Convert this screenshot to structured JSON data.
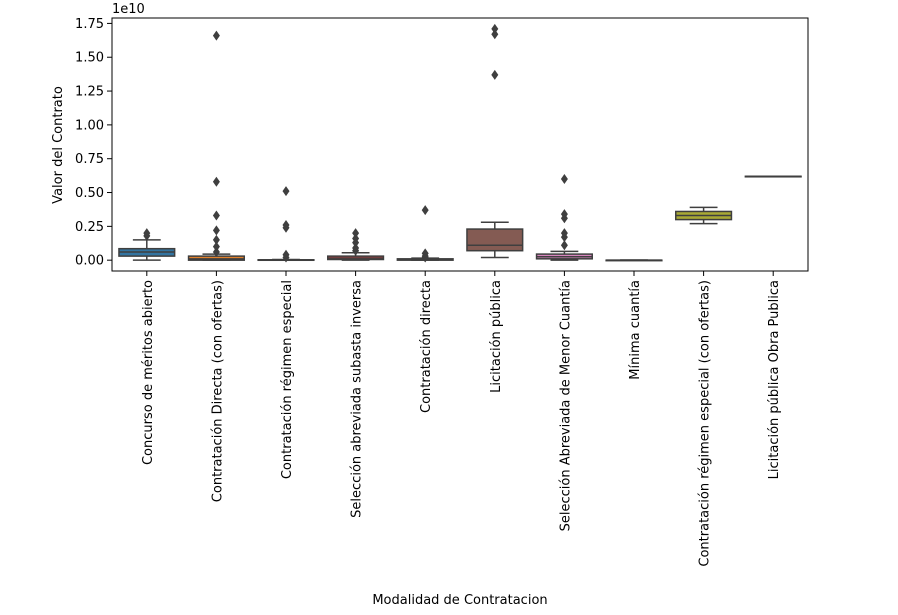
{
  "chart_data": {
    "type": "box",
    "title": "",
    "xlabel": "Modalidad de Contratacion",
    "ylabel": "Valor del Contrato",
    "y_multiplier_label": "1e10",
    "y_scale": 10000000000.0,
    "ylim": [
      -0.08,
      1.79
    ],
    "y_ticks": [
      0.0,
      0.25,
      0.5,
      0.75,
      1.0,
      1.25,
      1.5,
      1.75
    ],
    "y_tick_labels": [
      "0.00",
      "0.25",
      "0.50",
      "0.75",
      "1.00",
      "1.25",
      "1.50",
      "1.75"
    ],
    "grid": false,
    "categories": [
      "Concurso de méritos abierto",
      "Contratación Directa (con ofertas)",
      "Contratación régimen especial",
      "Selección abreviada subasta inversa",
      "Contratación directa",
      "Licitación pública",
      "Selección Abreviada de Menor Cuantía",
      "Mínima cuantía",
      "Contratación régimen especial (con ofertas)",
      "Licitación pública Obra Publica"
    ],
    "colors": [
      "#3274a1",
      "#e1812c",
      "#3a923a",
      "#c03d3e",
      "#9372b2",
      "#845b53",
      "#d684bd",
      "#7f7f7f",
      "#a9aa35",
      "#2eaab8"
    ],
    "boxes": [
      {
        "whislo": 0.0,
        "q1": 0.03,
        "med": 0.06,
        "q3": 0.085,
        "whishi": 0.15,
        "fliers": [
          0.18,
          0.2
        ]
      },
      {
        "whislo": 0.0,
        "q1": 0.0,
        "med": 0.01,
        "q3": 0.03,
        "whishi": 0.045,
        "fliers": [
          0.06,
          0.1,
          0.15,
          0.22,
          0.33,
          0.58,
          1.66
        ]
      },
      {
        "whislo": 0.0,
        "q1": 0.0,
        "med": 0.0,
        "q3": 0.003,
        "whishi": 0.005,
        "fliers": [
          0.02,
          0.04,
          0.24,
          0.26,
          0.51
        ]
      },
      {
        "whislo": 0.0,
        "q1": 0.005,
        "med": 0.015,
        "q3": 0.03,
        "whishi": 0.055,
        "fliers": [
          0.07,
          0.09,
          0.13,
          0.16,
          0.2
        ]
      },
      {
        "whislo": 0.0,
        "q1": 0.0,
        "med": 0.005,
        "q3": 0.01,
        "whishi": 0.015,
        "fliers": [
          0.02,
          0.03,
          0.05,
          0.37
        ]
      },
      {
        "whislo": 0.02,
        "q1": 0.07,
        "med": 0.11,
        "q3": 0.23,
        "whishi": 0.28,
        "fliers": [
          1.37,
          1.67,
          1.71
        ]
      },
      {
        "whislo": 0.0,
        "q1": 0.01,
        "med": 0.025,
        "q3": 0.045,
        "whishi": 0.065,
        "fliers": [
          0.11,
          0.17,
          0.2,
          0.31,
          0.34,
          0.6
        ]
      },
      {
        "whislo": 0.0,
        "q1": 0.0,
        "med": 0.0,
        "q3": 0.0,
        "whishi": 0.0,
        "fliers": []
      },
      {
        "whislo": 0.27,
        "q1": 0.3,
        "med": 0.33,
        "q3": 0.36,
        "whishi": 0.39,
        "fliers": []
      },
      {
        "whislo": 0.62,
        "q1": 0.62,
        "med": 0.62,
        "q3": 0.62,
        "whishi": 0.62,
        "fliers": []
      }
    ]
  }
}
